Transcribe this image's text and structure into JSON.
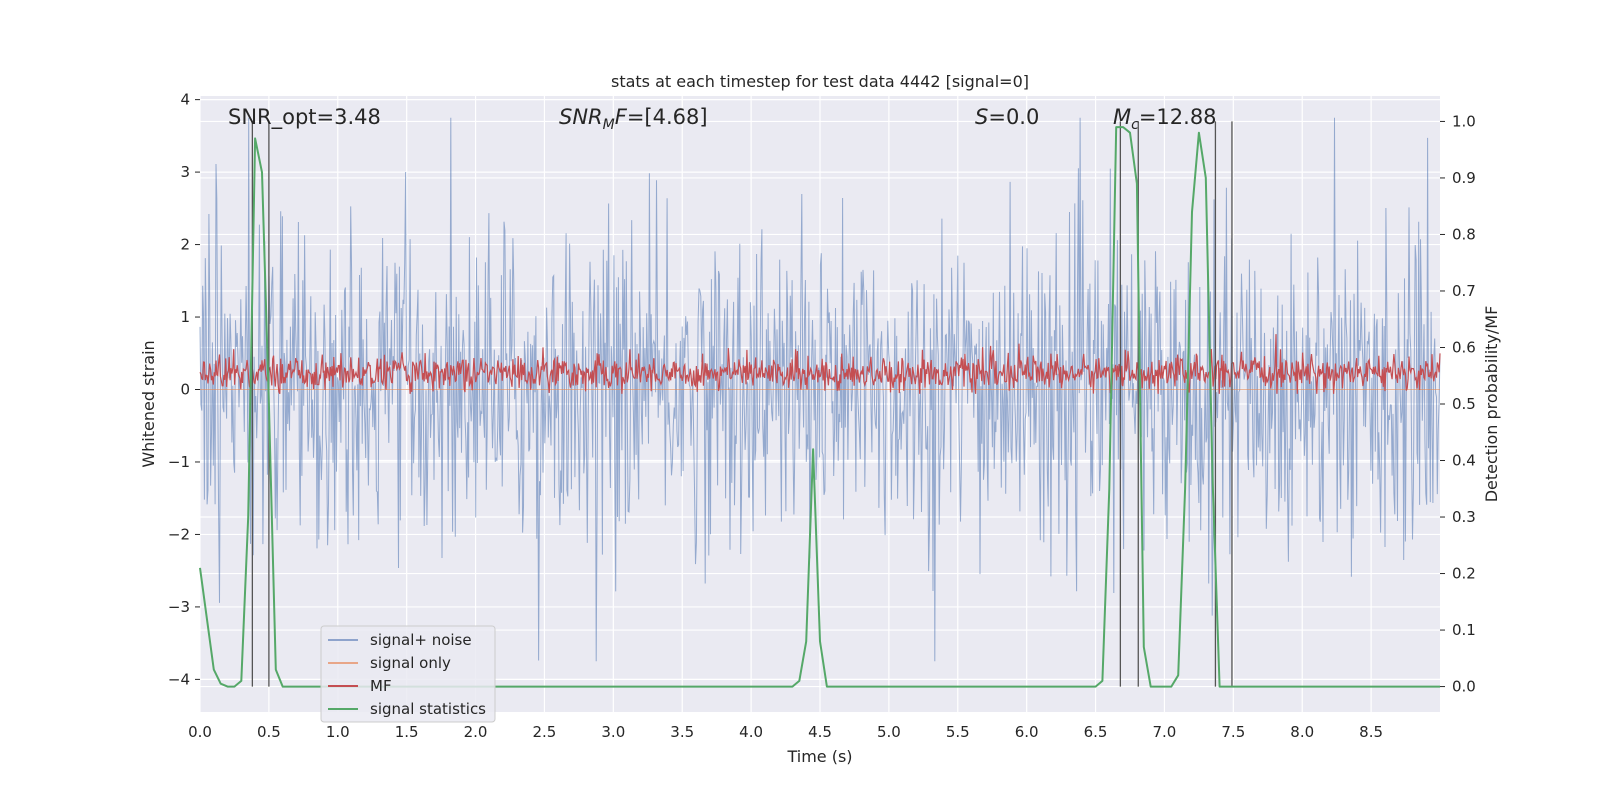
{
  "chart_data": {
    "type": "line",
    "title": "stats at each timestep for test data 4442 [signal=0]",
    "xlabel": "Time (s)",
    "ylabel_left": "Whitened strain",
    "ylabel_right": "Detection probability/MF",
    "xlim": [
      0.0,
      9.0
    ],
    "ylim_left": [
      -4.45,
      4.05
    ],
    "ylim_right": [
      -0.045,
      1.045
    ],
    "x_ticks": [
      "0.0",
      "0.5",
      "1.0",
      "1.5",
      "2.0",
      "2.5",
      "3.0",
      "3.5",
      "4.0",
      "4.5",
      "5.0",
      "5.5",
      "6.0",
      "6.5",
      "7.0",
      "7.5",
      "8.0",
      "8.5"
    ],
    "y_ticks_left": [
      "4",
      "3",
      "2",
      "1",
      "0",
      "−1",
      "−2",
      "−3",
      "−4"
    ],
    "y_ticks_right": [
      "1.0",
      "0.9",
      "0.8",
      "0.7",
      "0.6",
      "0.5",
      "0.4",
      "0.3",
      "0.2",
      "0.1",
      "0.0"
    ],
    "annotations": {
      "snr_opt": "SNR_opt=3.48",
      "snr_mf_main": "SNR",
      "snr_mf_sub": "M",
      "snr_mf_tail": "F",
      "snr_mf_value": "=[4.68]",
      "s_label": "S",
      "s_value": "=0.0",
      "mc_main": "M",
      "mc_sub": "c",
      "mc_value": "=12.88"
    },
    "legend": {
      "placement": "lower-left",
      "entries": [
        "signal+ noise",
        "signal only",
        "MF",
        "signal statistics"
      ]
    },
    "series": [
      {
        "name": "signal+ noise",
        "axis": "left",
        "color": "#4c72b0",
        "description": "whitened strain noise, sampled densely, envelope about ±1.6 with peaks to about ±3.7",
        "x_range": [
          0.0,
          9.0
        ]
      },
      {
        "name": "signal only",
        "axis": "left",
        "color": "#dd8452",
        "values": "flat at 0 (no signal)"
      },
      {
        "name": "MF",
        "axis": "right",
        "color": "#c44e52",
        "description": "matched filter output, baseline about 0.55 on the right axis, range 0.52–0.62"
      },
      {
        "name": "signal statistics",
        "axis": "right",
        "color": "#55a868",
        "x": [
          0.0,
          0.1,
          0.15,
          0.2,
          0.25,
          0.3,
          0.35,
          0.4,
          0.45,
          0.5,
          0.55,
          0.6,
          0.65,
          4.25,
          4.3,
          4.35,
          4.4,
          4.45,
          4.5,
          4.55,
          4.6,
          4.65,
          6.5,
          6.55,
          6.6,
          6.65,
          6.7,
          6.75,
          6.8,
          6.85,
          6.9,
          6.95,
          7.0,
          7.05,
          7.1,
          7.15,
          7.2,
          7.25,
          7.3,
          7.35,
          7.4,
          7.45,
          7.5,
          7.55,
          7.6,
          7.65,
          9.0
        ],
        "y": [
          0.21,
          0.03,
          0.005,
          0.0,
          0.0,
          0.01,
          0.3,
          0.97,
          0.91,
          0.5,
          0.03,
          0.0,
          0.0,
          0.0,
          0.0,
          0.01,
          0.08,
          0.42,
          0.08,
          0.0,
          0.0,
          0.0,
          0.0,
          0.01,
          0.35,
          0.99,
          0.99,
          0.98,
          0.89,
          0.07,
          0.0,
          0.0,
          0.0,
          0.0,
          0.02,
          0.35,
          0.84,
          0.98,
          0.9,
          0.36,
          0.0,
          0.0,
          0.0,
          0.0,
          0.0,
          0.0,
          0.0
        ]
      }
    ],
    "vertical_lines": [
      0.38,
      0.5,
      6.68,
      6.81,
      7.37,
      7.49
    ]
  }
}
